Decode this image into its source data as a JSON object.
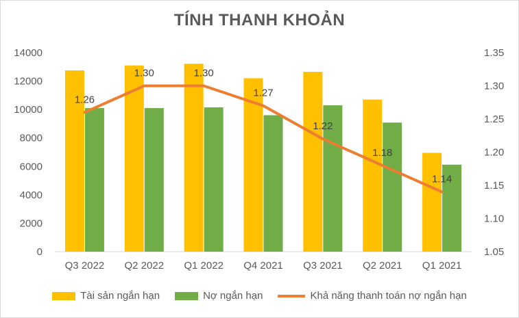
{
  "colors": {
    "assets": "#FFC000",
    "liabilities": "#70AD47",
    "ratio": "#ED7D31",
    "grid": "#d9d9d9",
    "text": "#595959"
  },
  "chart_data": {
    "type": "bar",
    "title": "TÍNH THANH KHOẢN",
    "categories": [
      "Q3 2022",
      "Q2 2022",
      "Q1 2022",
      "Q4 2021",
      "Q3 2021",
      "Q2 2021",
      "Q1 2021"
    ],
    "series": [
      {
        "name": "Tài sản ngắn hạn",
        "type": "bar",
        "axis": "left",
        "values": [
          12750,
          13100,
          13220,
          12200,
          12650,
          10700,
          6950
        ]
      },
      {
        "name": "Nợ ngắn hạn",
        "type": "bar",
        "axis": "left",
        "values": [
          10100,
          10100,
          10150,
          9600,
          10300,
          9080,
          6120
        ]
      },
      {
        "name": "Khả năng thanh toán nợ ngắn hạn",
        "type": "line",
        "axis": "right",
        "values": [
          1.26,
          1.3,
          1.3,
          1.27,
          1.22,
          1.18,
          1.14
        ]
      }
    ],
    "data_labels": [
      "1.26",
      "1.30",
      "1.30",
      "1.27",
      "1.22",
      "1.18",
      "1.14"
    ],
    "ylim": [
      0,
      14000
    ],
    "yticks": [
      "0",
      "2000",
      "4000",
      "6000",
      "8000",
      "10000",
      "12000",
      "14000"
    ],
    "y2lim": [
      1.05,
      1.35
    ],
    "y2ticks": [
      "1.05",
      "1.10",
      "1.15",
      "1.20",
      "1.25",
      "1.30",
      "1.35"
    ],
    "legend_position": "bottom",
    "grid": false
  }
}
